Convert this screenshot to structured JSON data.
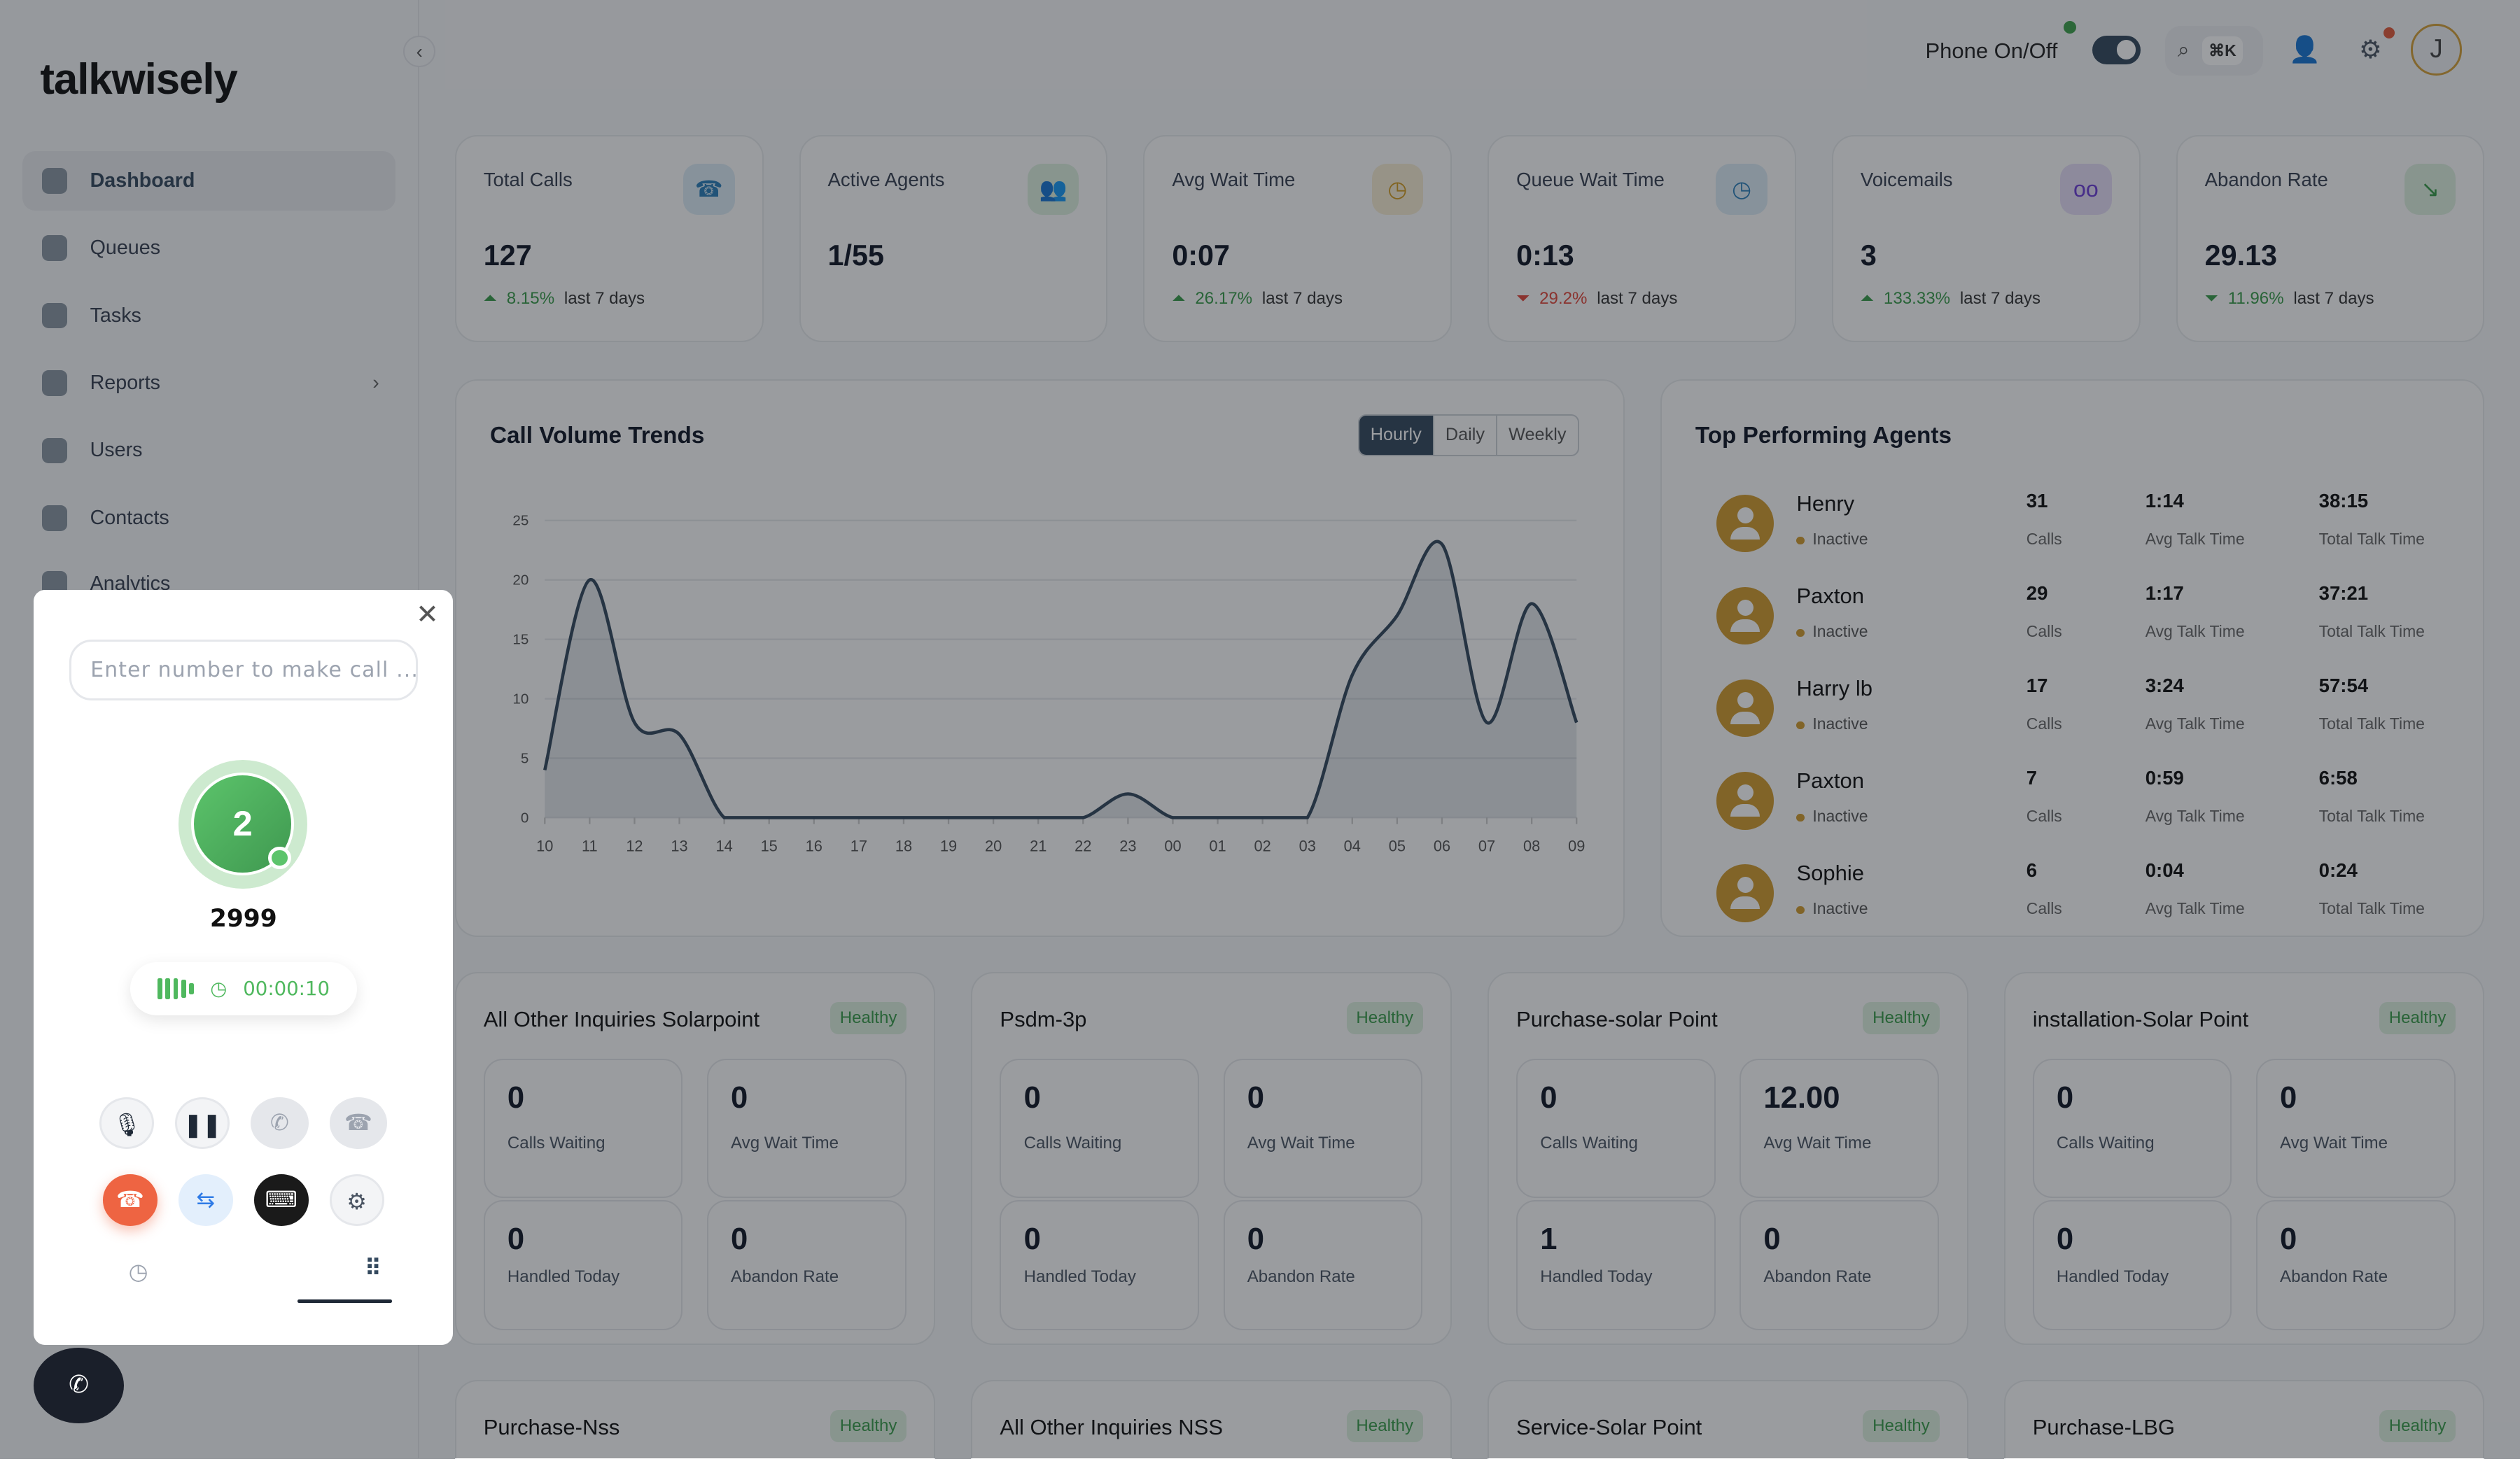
{
  "app": {
    "logo": "talkwisely",
    "collapse_icon": "chevron-left-icon"
  },
  "sidebar": {
    "items": [
      {
        "label": "Dashboard",
        "icon": "dashboard-icon",
        "active": true
      },
      {
        "label": "Queues",
        "icon": "document-icon"
      },
      {
        "label": "Tasks",
        "icon": "checklist-icon"
      },
      {
        "label": "Reports",
        "icon": "bar-chart-icon",
        "has_submenu": true
      },
      {
        "label": "Users",
        "icon": "user-icon"
      },
      {
        "label": "Contacts",
        "icon": "contact-card-icon"
      },
      {
        "label": "Analytics",
        "icon": "trend-icon"
      }
    ]
  },
  "header": {
    "phone_label": "Phone On/Off",
    "phone_on": true,
    "search_shortcut": "⌘K",
    "avatar_initial": "J"
  },
  "stats": [
    {
      "title": "Total Calls",
      "value": "127",
      "change": "8.15%",
      "dir": "up",
      "period": "last 7 days",
      "icon": "☎",
      "icon_color": "#2b7fb8",
      "icon_bg": "#dbeaf5"
    },
    {
      "title": "Active Agents",
      "value": "1/55",
      "icon": "👥",
      "icon_color": "#3a9b4a",
      "icon_bg": "#dcefdf"
    },
    {
      "title": "Avg Wait Time",
      "value": "0:07",
      "change": "26.17%",
      "dir": "up",
      "period": "last 7 days",
      "icon": "◷",
      "icon_color": "#d19a20",
      "icon_bg": "#f6ecd3"
    },
    {
      "title": "Queue Wait Time",
      "value": "0:13",
      "change": "29.2%",
      "dir": "down",
      "period": "last 7 days",
      "icon": "◷",
      "icon_color": "#2b7fb8",
      "icon_bg": "#dbeaf5"
    },
    {
      "title": "Voicemails",
      "value": "3",
      "change": "133.33%",
      "dir": "up",
      "period": "last 7 days",
      "icon": "oo",
      "icon_color": "#6d3fd6",
      "icon_bg": "#e6ddf7"
    },
    {
      "title": "Abandon Rate",
      "value": "29.13",
      "change": "11.96%",
      "dir": "down-good",
      "period": "last 7 days",
      "icon": "↘",
      "icon_color": "#3a9b4a",
      "icon_bg": "#dcefdf"
    }
  ],
  "chart": {
    "title": "Call Volume Trends",
    "tabs": [
      "Hourly",
      "Daily",
      "Weekly"
    ],
    "active_tab": "Hourly"
  },
  "chart_data": {
    "type": "area",
    "x": [
      "10",
      "11",
      "12",
      "13",
      "14",
      "15",
      "16",
      "17",
      "18",
      "19",
      "20",
      "21",
      "22",
      "23",
      "00",
      "01",
      "02",
      "03",
      "04",
      "05",
      "06",
      "07",
      "08",
      "09"
    ],
    "values": [
      4,
      20,
      8,
      7,
      0,
      0,
      0,
      0,
      0,
      0,
      0,
      0,
      0,
      2,
      0,
      0,
      0,
      0,
      12,
      17,
      23,
      8,
      18,
      8
    ],
    "yticks": [
      0,
      5,
      10,
      15,
      20,
      25
    ],
    "ylim": [
      0,
      25
    ],
    "grid": true,
    "color": "#34495e"
  },
  "agents": {
    "title": "Top Performing Agents",
    "labels": {
      "calls": "Calls",
      "avg": "Avg Talk Time",
      "total": "Total Talk Time"
    },
    "rows": [
      {
        "name": "Henry",
        "status": "Inactive",
        "calls": "31",
        "avg": "1:14",
        "total": "38:15"
      },
      {
        "name": "Paxton",
        "status": "Inactive",
        "calls": "29",
        "avg": "1:17",
        "total": "37:21"
      },
      {
        "name": "Harry lb",
        "status": "Inactive",
        "calls": "17",
        "avg": "3:24",
        "total": "57:54"
      },
      {
        "name": "Paxton",
        "status": "Inactive",
        "calls": "7",
        "avg": "0:59",
        "total": "6:58"
      },
      {
        "name": "Sophie",
        "status": "Inactive",
        "calls": "6",
        "avg": "0:04",
        "total": "0:24"
      }
    ]
  },
  "queue_labels": [
    "Calls Waiting",
    "Avg Wait Time",
    "Handled Today",
    "Abandon Rate"
  ],
  "queues": [
    {
      "name": "All Other Inquiries Solarpoint",
      "status": "Healthy",
      "values": [
        "0",
        "0",
        "0",
        "0"
      ]
    },
    {
      "name": "Psdm-3p",
      "status": "Healthy",
      "values": [
        "0",
        "0",
        "0",
        "0"
      ]
    },
    {
      "name": "Purchase-solar Point",
      "status": "Healthy",
      "values": [
        "0",
        "12.00",
        "1",
        "0"
      ]
    },
    {
      "name": "installation-Solar Point",
      "status": "Healthy",
      "values": [
        "0",
        "0",
        "0",
        "0"
      ]
    },
    {
      "name": "Purchase-Nss",
      "status": "Healthy"
    },
    {
      "name": "All Other Inquiries NSS",
      "status": "Healthy"
    },
    {
      "name": "Service-Solar Point",
      "status": "Healthy"
    },
    {
      "name": "Purchase-LBG",
      "status": "Healthy"
    }
  ],
  "dialer": {
    "placeholder": "Enter number to make call ...",
    "active_calls": "2",
    "number": "2999",
    "timer": "00:00:10"
  }
}
